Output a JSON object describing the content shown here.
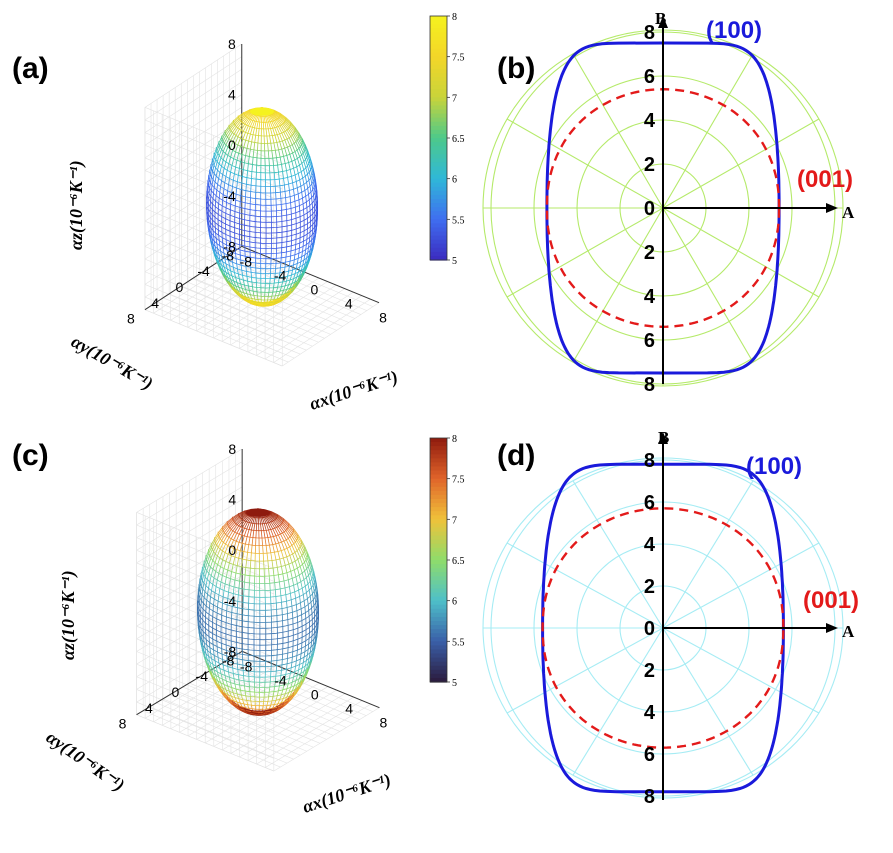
{
  "panels": {
    "a": {
      "label": "(a)",
      "zlabel": "αz(10⁻⁶K⁻¹)",
      "ylabel": "αy(10⁻⁶K⁻¹)",
      "xlabel": "αx(10⁻⁶K⁻¹)",
      "z_ticks": [
        "8",
        "4",
        "0",
        "-4",
        "-8"
      ],
      "y_ticks": [
        "8",
        "4",
        "0",
        "-4",
        "-8"
      ],
      "x_ticks": [
        "-8",
        "-4",
        "0",
        "4",
        "8"
      ],
      "colorbar_ticks": [
        "8",
        "7.5",
        "7",
        "6.5",
        "6",
        "5.5",
        "5"
      ],
      "colormap": [
        "#3b2bbf",
        "#3f6ef0",
        "#2fb8d8",
        "#4dc98a",
        "#c9d43a",
        "#f3d628",
        "#f5f21f"
      ]
    },
    "b": {
      "label": "(b)",
      "grid_color": "#b5ea6a",
      "axis_B": "B",
      "axis_A": "A",
      "series_100_label": "(100)",
      "series_001_label": "(001)",
      "ticks_up": [
        "8",
        "6",
        "4",
        "2",
        "0"
      ],
      "ticks_down": [
        "2",
        "4",
        "6",
        "8"
      ]
    },
    "c": {
      "label": "(c)",
      "zlabel": "αz(10⁻⁶K⁻¹)",
      "ylabel": "αy(10⁻⁶K⁻¹)",
      "xlabel": "αx(10⁻⁶K⁻¹)",
      "z_ticks": [
        "8",
        "4",
        "0",
        "-4",
        "-8"
      ],
      "y_ticks": [
        "8",
        "4",
        "0",
        "-4",
        "-8"
      ],
      "x_ticks": [
        "-8",
        "-4",
        "0",
        "4",
        "8"
      ],
      "colorbar_ticks": [
        "8",
        "7.5",
        "7",
        "6.5",
        "6",
        "5.5",
        "5"
      ],
      "colormap": [
        "#2b1b3d",
        "#3a5fa8",
        "#4ec0c9",
        "#8fdc6a",
        "#f0c23a",
        "#e0642a",
        "#8e1a0e"
      ]
    },
    "d": {
      "label": "(d)",
      "grid_color": "#a6ecf4",
      "axis_B": "B",
      "axis_A": "A",
      "series_100_label": "(100)",
      "series_001_label": "(001)",
      "ticks_up": [
        "8",
        "6",
        "4",
        "2",
        "0"
      ],
      "ticks_down": [
        "2",
        "4",
        "6",
        "8"
      ]
    }
  },
  "chart_data": [
    {
      "panel": "a",
      "type": "surface3d",
      "description_units": "10^-6 K^-1",
      "xlim": [
        -8,
        8
      ],
      "ylim": [
        -8,
        8
      ],
      "zlim": [
        -8,
        8
      ],
      "colorbar_range": [
        5,
        8
      ],
      "radius_equator": 5.3,
      "radius_pole": 7.7
    },
    {
      "panel": "b",
      "type": "polar",
      "rmax": 8,
      "series": [
        {
          "name": "(100)",
          "color": "#1a1adb",
          "style": "solid",
          "extent_A": 5.4,
          "extent_B": 7.5
        },
        {
          "name": "(001)",
          "color": "#e31a1a",
          "style": "dashed",
          "extent_A": 5.4,
          "extent_B": 5.4
        }
      ]
    },
    {
      "panel": "c",
      "type": "surface3d",
      "description_units": "10^-6 K^-1",
      "xlim": [
        -8,
        8
      ],
      "ylim": [
        -8,
        8
      ],
      "zlim": [
        -8,
        8
      ],
      "colorbar_range": [
        5,
        8
      ],
      "radius_equator": 5.6,
      "radius_pole": 8.0
    },
    {
      "panel": "d",
      "type": "polar",
      "rmax": 8,
      "series": [
        {
          "name": "(100)",
          "color": "#1a1adb",
          "style": "solid",
          "extent_A": 5.6,
          "extent_B": 7.8
        },
        {
          "name": "(001)",
          "color": "#e31a1a",
          "style": "dashed",
          "extent_A": 5.6,
          "extent_B": 5.7
        }
      ]
    }
  ]
}
